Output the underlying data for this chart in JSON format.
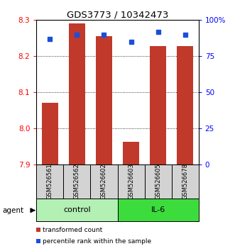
{
  "title": "GDS3773 / 10342473",
  "categories": [
    "GSM526561",
    "GSM526562",
    "GSM526602",
    "GSM526603",
    "GSM526605",
    "GSM526678"
  ],
  "bar_values": [
    8.07,
    8.29,
    8.255,
    7.962,
    8.228,
    8.228
  ],
  "percentile_values": [
    87,
    90,
    90,
    85,
    92,
    90
  ],
  "ylim_left": [
    7.9,
    8.3
  ],
  "ylim_right": [
    0,
    100
  ],
  "bar_color": "#c0392b",
  "dot_color": "#1a4fdb",
  "bar_bottom": 7.9,
  "yticks_left": [
    7.9,
    8.0,
    8.1,
    8.2,
    8.3
  ],
  "yticks_right": [
    0,
    25,
    50,
    75,
    100
  ],
  "ytick_labels_right": [
    "0",
    "25",
    "50",
    "75",
    "100%"
  ],
  "legend_items": [
    {
      "label": "transformed count",
      "color": "#c0392b"
    },
    {
      "label": "percentile rank within the sample",
      "color": "#1a4fdb"
    }
  ],
  "agent_label": "agent",
  "label_area_color": "#d3d3d3",
  "control_color": "#b3f0b3",
  "il6_color": "#3ddc3d"
}
